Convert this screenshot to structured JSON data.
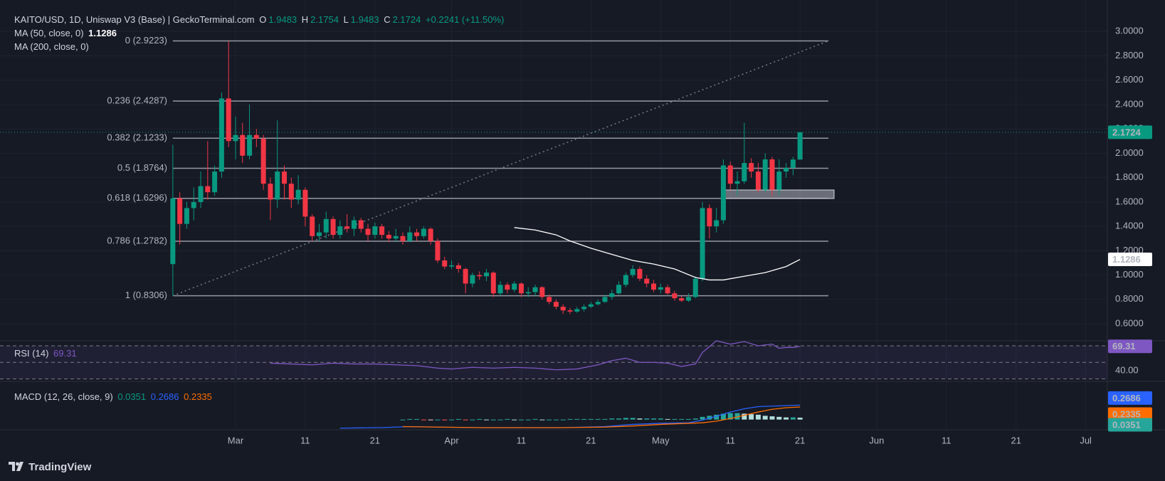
{
  "header": {
    "symbol": "KAITO/USD, 1D, Uniswap V3 (Base) | GeckoTerminal.com",
    "o": "O",
    "h": "H",
    "l": "L",
    "c": "C",
    "change": "+0.2241 (+11.50%)",
    "ma50": "MA (50, close, 0)",
    "ma200": "MA (200, close, 0)",
    "rsi": "RSI (14)",
    "macd": "MACD (12, 26, close, 9)"
  },
  "footer": {
    "brand": "TradingView"
  },
  "chart_data": {
    "type": "candlestick",
    "up_color": "#089981",
    "down_color": "#f23645",
    "xlim": [
      -24.8,
      134.1
    ],
    "xticks": [
      {
        "value": 9,
        "label": "Mar"
      },
      {
        "value": 19,
        "label": "11"
      },
      {
        "value": 29,
        "label": "21"
      },
      {
        "value": 40,
        "label": "Apr"
      },
      {
        "value": 50,
        "label": "11"
      },
      {
        "value": 60,
        "label": "21"
      },
      {
        "value": 70,
        "label": "May"
      },
      {
        "value": 80,
        "label": "11"
      },
      {
        "value": 90,
        "label": "21"
      },
      {
        "value": 101,
        "label": "Jun"
      },
      {
        "value": 111,
        "label": "11"
      },
      {
        "value": 121,
        "label": "21"
      },
      {
        "value": 131,
        "label": "Jul"
      }
    ],
    "ylim": [
      0.46,
      3.2
    ],
    "yticks": [
      {
        "value": 0.6,
        "label": "0.6000"
      },
      {
        "value": 0.8,
        "label": "0.8000"
      },
      {
        "value": 1.0,
        "label": "1.0000"
      },
      {
        "value": 1.2,
        "label": "1.2000"
      },
      {
        "value": 1.4,
        "label": "1.4000"
      },
      {
        "value": 1.6,
        "label": "1.6000"
      },
      {
        "value": 1.8,
        "label": "1.8000"
      },
      {
        "value": 2.0,
        "label": "2.0000"
      },
      {
        "value": 2.2,
        "label": "2.2000"
      },
      {
        "value": 2.4,
        "label": "2.4000"
      },
      {
        "value": 2.6,
        "label": "2.6000"
      },
      {
        "value": 2.8,
        "label": "2.8000"
      },
      {
        "value": 3.0,
        "label": "3.0000"
      }
    ],
    "grid": true,
    "candles": [
      [
        1.09,
        2.07,
        0.83,
        1.63
      ],
      [
        1.63,
        1.68,
        1.25,
        1.42
      ],
      [
        1.42,
        1.6,
        1.38,
        1.55
      ],
      [
        1.55,
        1.72,
        1.45,
        1.6
      ],
      [
        1.6,
        1.85,
        1.55,
        1.73
      ],
      [
        1.73,
        2.1,
        1.62,
        1.68
      ],
      [
        1.68,
        1.9,
        1.65,
        1.85
      ],
      [
        1.85,
        2.5,
        1.8,
        2.45
      ],
      [
        2.45,
        2.92,
        2.05,
        2.1
      ],
      [
        2.1,
        2.3,
        1.95,
        2.15
      ],
      [
        2.15,
        2.25,
        1.92,
        1.98
      ],
      [
        1.98,
        2.4,
        1.95,
        2.15
      ],
      [
        2.15,
        2.2,
        2.05,
        2.12
      ],
      [
        2.12,
        2.15,
        1.7,
        1.75
      ],
      [
        1.75,
        1.8,
        1.45,
        1.62
      ],
      [
        1.62,
        2.27,
        1.55,
        1.85
      ],
      [
        1.85,
        1.9,
        1.62,
        1.75
      ],
      [
        1.75,
        1.8,
        1.55,
        1.62
      ],
      [
        1.62,
        1.82,
        1.58,
        1.7
      ],
      [
        1.7,
        1.72,
        1.4,
        1.48
      ],
      [
        1.48,
        1.5,
        1.28,
        1.32
      ],
      [
        1.32,
        1.42,
        1.28,
        1.35
      ],
      [
        1.35,
        1.52,
        1.3,
        1.46
      ],
      [
        1.46,
        1.48,
        1.3,
        1.33
      ],
      [
        1.33,
        1.45,
        1.3,
        1.4
      ],
      [
        1.4,
        1.5,
        1.35,
        1.38
      ],
      [
        1.38,
        1.48,
        1.32,
        1.45
      ],
      [
        1.45,
        1.47,
        1.35,
        1.38
      ],
      [
        1.38,
        1.42,
        1.28,
        1.33
      ],
      [
        1.33,
        1.43,
        1.3,
        1.4
      ],
      [
        1.4,
        1.42,
        1.3,
        1.33
      ],
      [
        1.33,
        1.36,
        1.27,
        1.3
      ],
      [
        1.3,
        1.38,
        1.27,
        1.32
      ],
      [
        1.32,
        1.35,
        1.25,
        1.28
      ],
      [
        1.28,
        1.4,
        1.27,
        1.35
      ],
      [
        1.35,
        1.38,
        1.28,
        1.32
      ],
      [
        1.32,
        1.4,
        1.3,
        1.38
      ],
      [
        1.38,
        1.39,
        1.25,
        1.28
      ],
      [
        1.28,
        1.3,
        1.1,
        1.12
      ],
      [
        1.12,
        1.15,
        1.05,
        1.07
      ],
      [
        1.07,
        1.12,
        1.05,
        1.08
      ],
      [
        1.08,
        1.1,
        1.02,
        1.05
      ],
      [
        1.05,
        1.06,
        0.85,
        0.93
      ],
      [
        0.93,
        1.02,
        0.9,
        1.0
      ],
      [
        1.0,
        1.03,
        0.96,
        0.99
      ],
      [
        0.99,
        1.05,
        0.95,
        1.02
      ],
      [
        1.02,
        1.03,
        0.82,
        0.85
      ],
      [
        0.85,
        0.95,
        0.83,
        0.92
      ],
      [
        0.92,
        0.94,
        0.85,
        0.88
      ],
      [
        0.88,
        0.95,
        0.86,
        0.93
      ],
      [
        0.93,
        0.94,
        0.82,
        0.85
      ],
      [
        0.85,
        0.9,
        0.82,
        0.86
      ],
      [
        0.86,
        0.92,
        0.83,
        0.9
      ],
      [
        0.9,
        0.91,
        0.8,
        0.82
      ],
      [
        0.82,
        0.84,
        0.76,
        0.78
      ],
      [
        0.78,
        0.8,
        0.72,
        0.74
      ],
      [
        0.74,
        0.76,
        0.68,
        0.71
      ],
      [
        0.71,
        0.73,
        0.68,
        0.7
      ],
      [
        0.7,
        0.74,
        0.69,
        0.72
      ],
      [
        0.72,
        0.76,
        0.7,
        0.74
      ],
      [
        0.74,
        0.78,
        0.73,
        0.76
      ],
      [
        0.76,
        0.8,
        0.75,
        0.78
      ],
      [
        0.78,
        0.84,
        0.77,
        0.82
      ],
      [
        0.82,
        0.88,
        0.8,
        0.85
      ],
      [
        0.85,
        0.95,
        0.84,
        0.92
      ],
      [
        0.92,
        1.02,
        0.9,
        1.0
      ],
      [
        1.0,
        1.08,
        0.98,
        1.05
      ],
      [
        1.05,
        1.07,
        0.95,
        0.97
      ],
      [
        0.97,
        1.0,
        0.9,
        0.93
      ],
      [
        0.93,
        0.96,
        0.86,
        0.88
      ],
      [
        0.88,
        0.93,
        0.85,
        0.9
      ],
      [
        0.9,
        0.92,
        0.84,
        0.85
      ],
      [
        0.85,
        0.87,
        0.79,
        0.81
      ],
      [
        0.81,
        0.83,
        0.78,
        0.79
      ],
      [
        0.79,
        0.85,
        0.78,
        0.82
      ],
      [
        0.82,
        0.99,
        0.81,
        0.97
      ],
      [
        0.97,
        1.6,
        0.95,
        1.55
      ],
      [
        1.55,
        1.58,
        1.3,
        1.4
      ],
      [
        1.4,
        1.55,
        1.35,
        1.45
      ],
      [
        1.45,
        1.95,
        1.42,
        1.9
      ],
      [
        1.9,
        1.93,
        1.7,
        1.75
      ],
      [
        1.75,
        1.85,
        1.65,
        1.77
      ],
      [
        1.77,
        2.25,
        1.75,
        1.92
      ],
      [
        1.92,
        1.96,
        1.8,
        1.85
      ],
      [
        1.85,
        1.92,
        1.68,
        1.7
      ],
      [
        1.7,
        2.0,
        1.68,
        1.95
      ],
      [
        1.95,
        1.97,
        1.65,
        1.7
      ],
      [
        1.7,
        1.95,
        1.66,
        1.85
      ],
      [
        1.85,
        1.92,
        1.8,
        1.88
      ],
      [
        1.88,
        1.97,
        1.82,
        1.9483
      ],
      [
        1.9483,
        2.1754,
        1.9483,
        2.1724
      ]
    ],
    "fib": [
      {
        "label": "0 (2.9223)",
        "value": 2.9223
      },
      {
        "label": "0.236 (2.4287)",
        "value": 2.4287
      },
      {
        "label": "0.382 (2.1233)",
        "value": 2.1233
      },
      {
        "label": "0.5 (1.8764)",
        "value": 1.8764
      },
      {
        "label": "0.618 (1.6296)",
        "value": 1.6296
      },
      {
        "label": "0.786 (1.2782)",
        "value": 1.2782
      },
      {
        "label": "1 (0.8306)",
        "value": 0.8306
      }
    ],
    "ma50": {
      "color": "#ffffff",
      "x": [
        49,
        52,
        55,
        57,
        60,
        63,
        66,
        69,
        72,
        75,
        77,
        79,
        82,
        85,
        88,
        90
      ],
      "values": [
        1.39,
        1.37,
        1.33,
        1.28,
        1.22,
        1.17,
        1.12,
        1.09,
        1.05,
        0.98,
        0.96,
        0.96,
        0.99,
        1.02,
        1.07,
        1.1286
      ]
    },
    "rsi": {
      "color": "#7e57c2",
      "ylim": [
        27,
        76
      ],
      "yticks": [
        {
          "value": 40,
          "label": "40.00"
        }
      ],
      "bands": [
        70,
        50,
        30
      ],
      "x": [
        14,
        17,
        20,
        23,
        26,
        29,
        32,
        35,
        38,
        40,
        43,
        46,
        49,
        52,
        55,
        58,
        61,
        63,
        65,
        67,
        69,
        71,
        73,
        75,
        76,
        78,
        80,
        82,
        84,
        86,
        87,
        88,
        89,
        90
      ],
      "values": [
        49,
        48,
        47,
        49,
        48,
        48,
        47,
        46,
        43,
        42,
        44,
        43,
        44,
        43,
        41,
        42,
        47,
        52,
        55,
        50,
        50,
        49,
        45,
        48,
        62,
        76,
        72,
        75,
        70,
        72,
        67,
        68,
        68,
        69.31
      ]
    },
    "macd": {
      "ylim": [
        -0.19,
        0.71
      ],
      "macd_line": {
        "color": "#2962ff",
        "x": [
          24,
          30,
          34,
          38,
          44,
          50,
          56,
          62,
          66,
          70,
          74,
          76,
          78,
          80,
          82,
          84,
          86,
          88,
          90
        ],
        "values": [
          -0.16,
          -0.15,
          -0.13,
          -0.14,
          -0.15,
          -0.15,
          -0.15,
          -0.13,
          -0.09,
          -0.07,
          -0.06,
          -0.01,
          0.06,
          0.14,
          0.2,
          0.24,
          0.25,
          0.26,
          0.2686
        ]
      },
      "signal": {
        "color": "#ff6d00",
        "x": [
          33,
          38,
          44,
          50,
          56,
          62,
          66,
          70,
          74,
          76,
          78,
          80,
          82,
          84,
          86,
          88,
          90
        ],
        "values": [
          -0.13,
          -0.14,
          -0.15,
          -0.15,
          -0.15,
          -0.14,
          -0.12,
          -0.09,
          -0.07,
          -0.06,
          -0.03,
          0.02,
          0.08,
          0.14,
          0.19,
          0.22,
          0.2335
        ]
      },
      "histogram": {
        "color": "#26a69a",
        "x_start": 33,
        "values": [
          0.0,
          0.01,
          0.01,
          -0.01,
          -0.01,
          0.0,
          -0.01,
          0.0,
          0.01,
          -0.01,
          0.0,
          0.01,
          0.0,
          0.0,
          0.0,
          0.01,
          0.0,
          0.0,
          0.0,
          0.01,
          0.0,
          0.0,
          0.0,
          0.0,
          0.01,
          0.01,
          0.01,
          0.01,
          0.01,
          0.01,
          0.02,
          0.02,
          0.03,
          0.03,
          0.02,
          0.02,
          0.02,
          0.02,
          0.01,
          0.01,
          0.01,
          0.01,
          0.02,
          0.05,
          0.07,
          0.09,
          0.11,
          0.12,
          0.12,
          0.11,
          0.1,
          0.09,
          0.07,
          0.06,
          0.05,
          0.04,
          0.04,
          0.0351
        ]
      }
    }
  }
}
